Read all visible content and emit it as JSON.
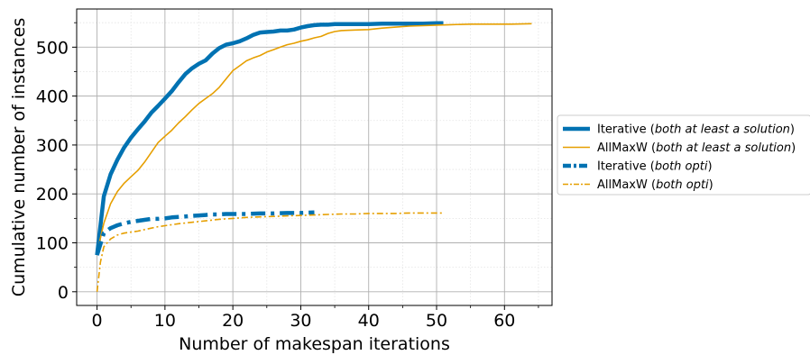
{
  "chart_data": {
    "type": "line",
    "xlabel": "Number of makespan iterations",
    "ylabel": "Cumulative number of instances",
    "xlim": [
      -3,
      67
    ],
    "ylim": [
      -28,
      578
    ],
    "x_ticks": [
      0,
      10,
      20,
      30,
      40,
      50,
      60
    ],
    "y_ticks": [
      0,
      100,
      200,
      300,
      400,
      500
    ],
    "x_minor_ticks": [
      5,
      15,
      25,
      35,
      45,
      55,
      65
    ],
    "y_minor_ticks": [
      50,
      150,
      250,
      350,
      450,
      550
    ],
    "grid": true,
    "legend_position": "right",
    "series": [
      {
        "name_main": "Iterative (",
        "name_italic": "both at least a solution",
        "name_end": ")",
        "color": "#0072b2",
        "style": "solid",
        "width": "thick",
        "x": [
          0,
          1,
          2,
          3,
          4,
          5,
          6,
          7,
          8,
          9,
          10,
          11,
          12,
          13,
          14,
          15,
          16,
          17,
          18,
          19,
          20,
          21,
          22,
          23,
          24,
          25,
          26,
          27,
          28,
          29,
          30,
          31,
          32,
          33,
          34,
          35,
          36,
          38,
          40,
          42,
          44,
          46,
          48,
          50,
          51
        ],
        "y": [
          75,
          195,
          240,
          270,
          295,
          315,
          332,
          348,
          366,
          380,
          395,
          410,
          428,
          445,
          457,
          466,
          473,
          487,
          498,
          505,
          508,
          512,
          518,
          525,
          530,
          531,
          532,
          534,
          534,
          536,
          540,
          543,
          545,
          546,
          546,
          547,
          547,
          547,
          547,
          548,
          548,
          548,
          548,
          549,
          549
        ]
      },
      {
        "name_main": "AllMaxW (",
        "name_italic": "both at least a solution",
        "name_end": ")",
        "color": "#e69f00",
        "style": "solid",
        "width": "thin",
        "x": [
          0,
          1,
          2,
          3,
          4,
          5,
          6,
          7,
          8,
          9,
          10,
          11,
          12,
          13,
          14,
          15,
          16,
          17,
          18,
          19,
          20,
          21,
          22,
          23,
          24,
          25,
          26,
          27,
          28,
          29,
          30,
          31,
          32,
          33,
          34,
          35,
          36,
          38,
          40,
          42,
          44,
          46,
          48,
          50,
          52,
          55,
          58,
          61,
          64
        ],
        "y": [
          80,
          140,
          180,
          205,
          222,
          235,
          248,
          265,
          285,
          305,
          318,
          330,
          345,
          358,
          372,
          385,
          395,
          405,
          418,
          435,
          452,
          462,
          472,
          478,
          483,
          490,
          495,
          500,
          505,
          508,
          512,
          515,
          519,
          522,
          528,
          532,
          534,
          535,
          536,
          539,
          541,
          543,
          544,
          545,
          546,
          547,
          547,
          547,
          548
        ]
      },
      {
        "name_main": "Iterative (",
        "name_italic": "both opti",
        "name_end": ")",
        "color": "#0072b2",
        "style": "dashdot",
        "width": "thick",
        "x": [
          0,
          1,
          2,
          3,
          4,
          5,
          6,
          7,
          8,
          9,
          10,
          11,
          12,
          13,
          14,
          15,
          16,
          17,
          18,
          19,
          20,
          22,
          24,
          26,
          28,
          30,
          32
        ],
        "y": [
          75,
          120,
          130,
          136,
          140,
          143,
          145,
          147,
          149,
          149,
          150,
          152,
          153,
          154,
          155,
          156,
          157,
          158,
          158,
          159,
          159,
          159,
          160,
          160,
          161,
          161,
          162
        ]
      },
      {
        "name_main": "AllMaxW (",
        "name_italic": "both opti",
        "name_end": ")",
        "color": "#e69f00",
        "style": "dashdot",
        "width": "thin",
        "x": [
          0,
          0.5,
          1,
          2,
          3,
          4,
          5,
          6,
          7,
          8,
          9,
          10,
          12,
          14,
          16,
          18,
          20,
          22,
          24,
          26,
          28,
          30,
          32,
          34,
          36,
          38,
          40,
          42,
          44,
          46,
          48,
          51
        ],
        "y": [
          0,
          60,
          92,
          108,
          116,
          120,
          122,
          124,
          127,
          130,
          133,
          135,
          139,
          142,
          145,
          148,
          150,
          152,
          153,
          154,
          155,
          156,
          157,
          158,
          159,
          159,
          160,
          160,
          160,
          161,
          161,
          161
        ]
      }
    ]
  }
}
